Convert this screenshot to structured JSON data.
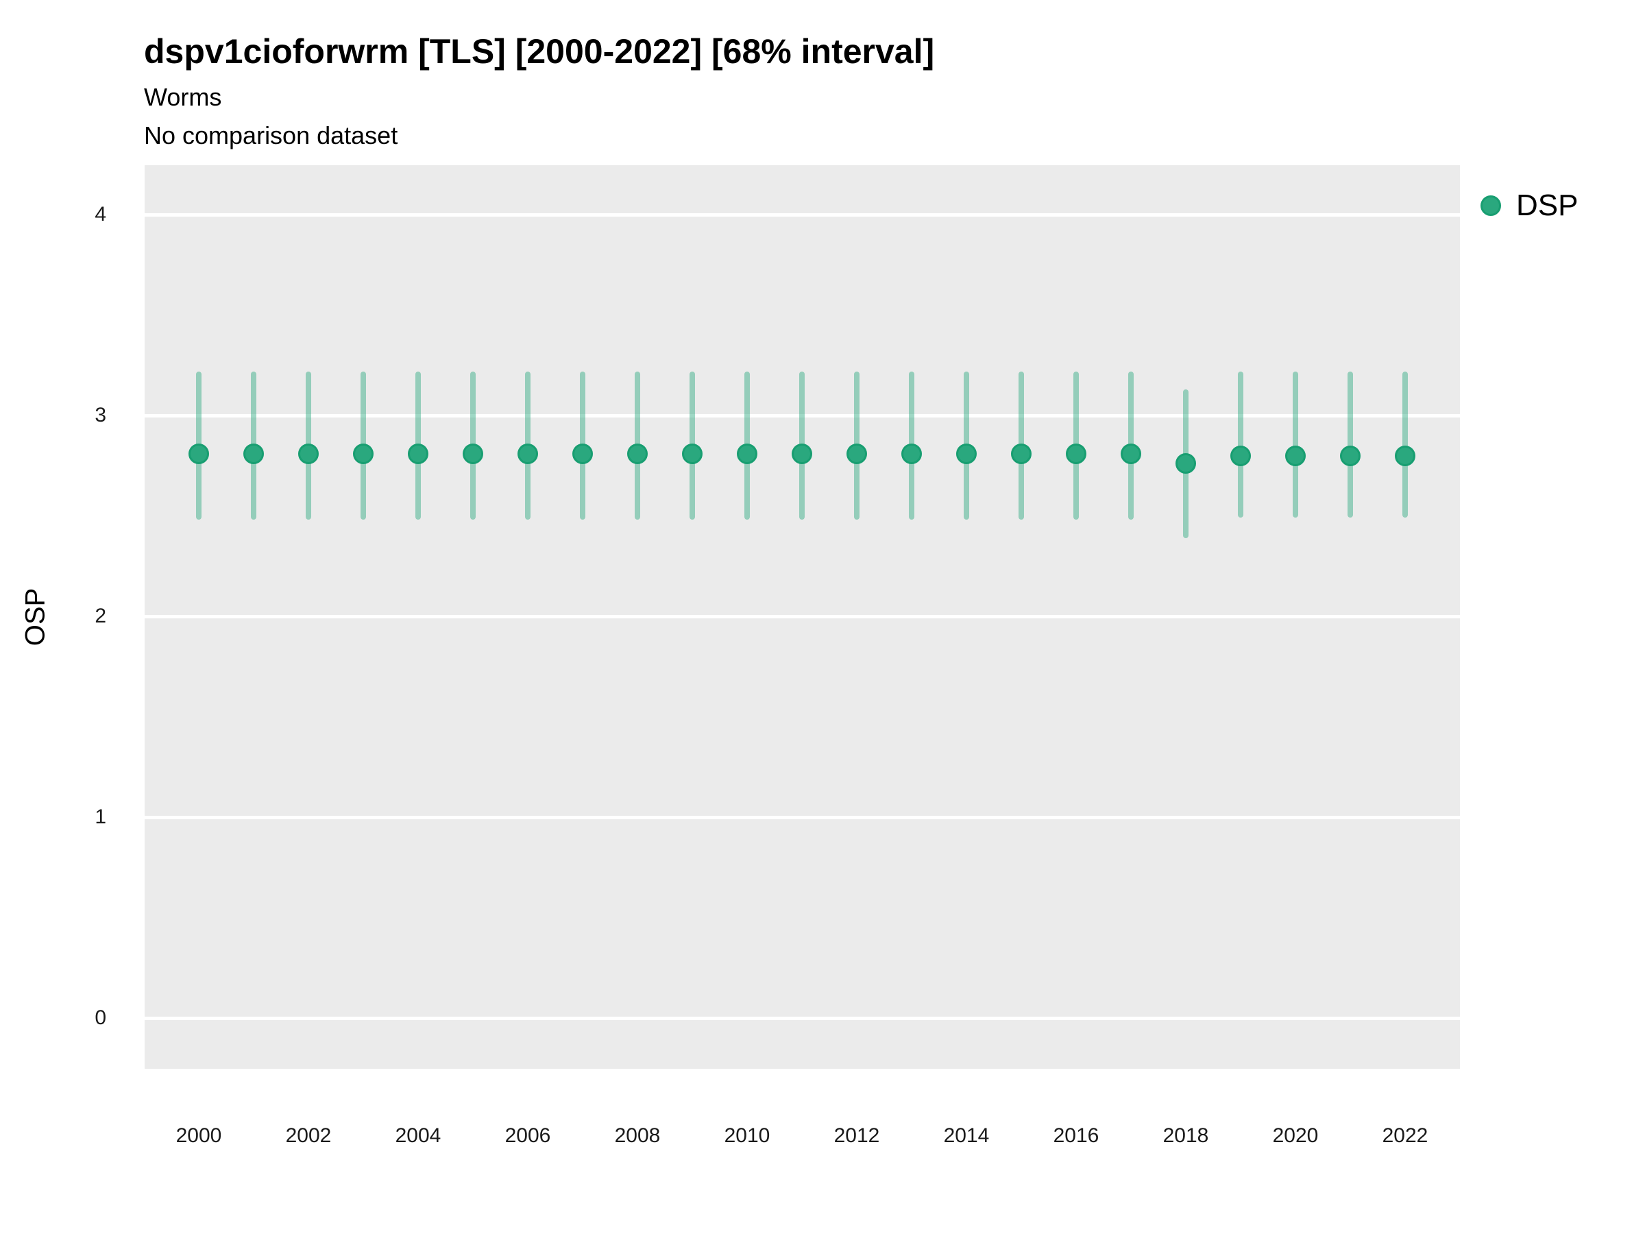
{
  "header": {
    "title": "dspv1cioforwrm [TLS] [2000-2022] [68% interval]",
    "subtitle1": "Worms",
    "subtitle2": "No comparison dataset"
  },
  "legend": {
    "position": "right",
    "items": [
      {
        "label": "DSP",
        "color": "#2aa87e"
      }
    ]
  },
  "colors": {
    "point_fill": "#2aa87e",
    "point_stroke": "#189e71",
    "interval_bar": "rgba(42, 168, 126, 0.45)",
    "panel_bg": "#ebebeb",
    "gridline": "#ffffff",
    "text": "#000000"
  },
  "chart_data": {
    "type": "scatter",
    "title": "dspv1cioforwrm [TLS] [2000-2022] [68% interval]",
    "subtitle": "Worms",
    "caption": "No comparison dataset",
    "xlabel": "",
    "ylabel": "OSP",
    "interval": "68%",
    "ylim": [
      0,
      4
    ],
    "yticks": [
      4,
      3,
      2,
      1,
      0
    ],
    "xticks": [
      2000,
      2002,
      2004,
      2006,
      2008,
      2010,
      2012,
      2014,
      2016,
      2018,
      2020,
      2022
    ],
    "grid": "major-horizontal",
    "legend_position": "right",
    "series": [
      {
        "name": "DSP",
        "points": [
          {
            "x": 2000,
            "y": 2.81,
            "lo": 2.48,
            "hi": 3.22
          },
          {
            "x": 2001,
            "y": 2.81,
            "lo": 2.48,
            "hi": 3.22
          },
          {
            "x": 2002,
            "y": 2.81,
            "lo": 2.48,
            "hi": 3.22
          },
          {
            "x": 2003,
            "y": 2.81,
            "lo": 2.48,
            "hi": 3.22
          },
          {
            "x": 2004,
            "y": 2.81,
            "lo": 2.48,
            "hi": 3.22
          },
          {
            "x": 2005,
            "y": 2.81,
            "lo": 2.48,
            "hi": 3.22
          },
          {
            "x": 2006,
            "y": 2.81,
            "lo": 2.48,
            "hi": 3.22
          },
          {
            "x": 2007,
            "y": 2.81,
            "lo": 2.48,
            "hi": 3.22
          },
          {
            "x": 2008,
            "y": 2.81,
            "lo": 2.48,
            "hi": 3.22
          },
          {
            "x": 2009,
            "y": 2.81,
            "lo": 2.48,
            "hi": 3.22
          },
          {
            "x": 2010,
            "y": 2.81,
            "lo": 2.48,
            "hi": 3.22
          },
          {
            "x": 2011,
            "y": 2.81,
            "lo": 2.48,
            "hi": 3.22
          },
          {
            "x": 2012,
            "y": 2.81,
            "lo": 2.48,
            "hi": 3.22
          },
          {
            "x": 2013,
            "y": 2.81,
            "lo": 2.48,
            "hi": 3.22
          },
          {
            "x": 2014,
            "y": 2.81,
            "lo": 2.48,
            "hi": 3.22
          },
          {
            "x": 2015,
            "y": 2.81,
            "lo": 2.48,
            "hi": 3.22
          },
          {
            "x": 2016,
            "y": 2.81,
            "lo": 2.48,
            "hi": 3.22
          },
          {
            "x": 2017,
            "y": 2.81,
            "lo": 2.48,
            "hi": 3.22
          },
          {
            "x": 2018,
            "y": 2.76,
            "lo": 2.39,
            "hi": 3.13
          },
          {
            "x": 2019,
            "y": 2.8,
            "lo": 2.49,
            "hi": 3.22
          },
          {
            "x": 2020,
            "y": 2.8,
            "lo": 2.49,
            "hi": 3.22
          },
          {
            "x": 2021,
            "y": 2.8,
            "lo": 2.49,
            "hi": 3.22
          },
          {
            "x": 2022,
            "y": 2.8,
            "lo": 2.49,
            "hi": 3.22
          }
        ]
      }
    ]
  }
}
